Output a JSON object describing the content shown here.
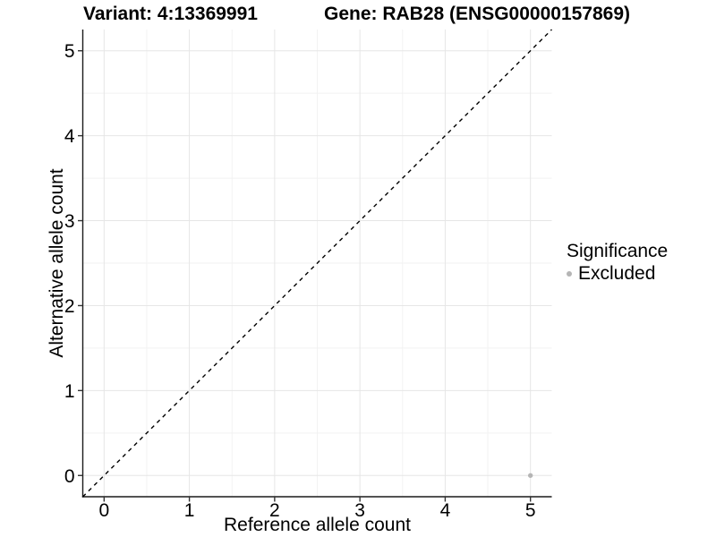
{
  "chart_data": {
    "type": "scatter",
    "titles": {
      "left": "Variant: 4:13369991",
      "right": "Gene: RAB28 (ENSG00000157869)"
    },
    "xlabel": "Reference allele count",
    "ylabel": "Alternative allele count",
    "xlim": [
      -0.25,
      5.25
    ],
    "ylim": [
      -0.25,
      5.25
    ],
    "x_breaks": [
      0,
      1,
      2,
      3,
      4,
      5
    ],
    "y_breaks": [
      0,
      1,
      2,
      3,
      4,
      5
    ],
    "x_minor_breaks": [
      0.5,
      1.5,
      2.5,
      3.5,
      4.5
    ],
    "y_minor_breaks": [
      0.5,
      1.5,
      2.5,
      3.5,
      4.5
    ],
    "points": [
      {
        "x": 5,
        "y": 0,
        "significance": "Excluded"
      }
    ],
    "identity_line": {
      "slope": 1,
      "intercept": 0,
      "style": "dashed",
      "color": "#000000"
    },
    "legend": {
      "title": "Significance",
      "position": "right",
      "items": [
        {
          "label": "Excluded",
          "color": "#b5b5b5"
        }
      ]
    },
    "grid": {
      "major": true,
      "minor": true,
      "major_color": "#e6e6e6",
      "minor_color": "#f2f2f2"
    },
    "colors": {
      "point": "#b5b5b5",
      "axis_line": "#1a1a1a",
      "tick": "#333333",
      "text": "#000000",
      "background": "#ffffff"
    }
  }
}
